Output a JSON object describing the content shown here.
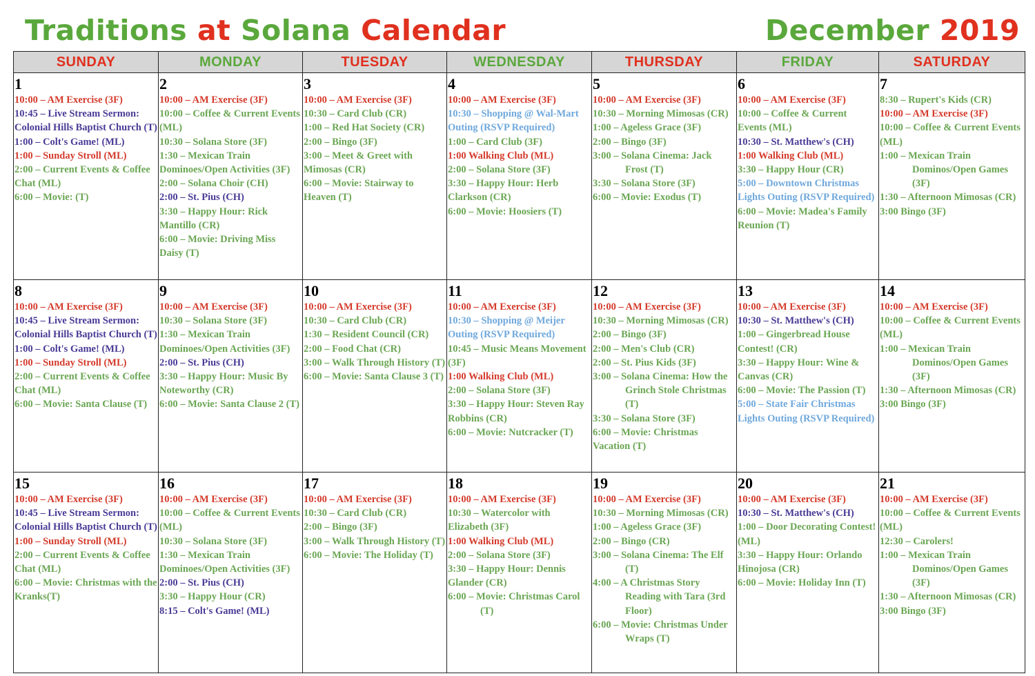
{
  "title": {
    "part1": "Traditions",
    "part2": "at",
    "part3": "Solana",
    "part4": "Calendar",
    "month": "December",
    "year": "2019"
  },
  "colors": {
    "title_green": "#5aa83c",
    "title_red": "#e0301e",
    "r": "#d43a2b",
    "g": "#6aa653",
    "p": "#4a3a96",
    "b": "#6fa8dc",
    "header_bg": "#d6d6d6"
  },
  "weekdays": [
    {
      "label": "SUNDAY",
      "color": "red"
    },
    {
      "label": "MONDAY",
      "color": "green"
    },
    {
      "label": "TUESDAY",
      "color": "red"
    },
    {
      "label": "WEDNESDAY",
      "color": "green"
    },
    {
      "label": "THURSDAY",
      "color": "red"
    },
    {
      "label": "FRIDAY",
      "color": "green"
    },
    {
      "label": "SATURDAY",
      "color": "red"
    }
  ],
  "weeks": [
    {
      "days": [
        {
          "num": "1",
          "events": [
            {
              "c": "r",
              "text": "10:00 – AM Exercise (3F)"
            },
            {
              "c": "p",
              "text": "10:45 – Live Stream Sermon: Colonial Hills Baptist Church (T)"
            },
            {
              "c": "p",
              "text": "1:00 – Colt's Game! (ML)"
            },
            {
              "c": "r",
              "text": "1:00 – Sunday Stroll (ML)"
            },
            {
              "c": "g",
              "text": "2:00 – Current Events & Coffee Chat (ML)"
            },
            {
              "c": "g",
              "text": "6:00 – Movie: (T)"
            }
          ]
        },
        {
          "num": "2",
          "events": [
            {
              "c": "r",
              "text": "10:00 – AM Exercise (3F)"
            },
            {
              "c": "g",
              "text": "10:00 – Coffee & Current Events (ML)"
            },
            {
              "c": "g",
              "text": "10:30 – Solana Store (3F)"
            },
            {
              "c": "g",
              "text": "1:30 – Mexican Train Dominoes/Open Activities (3F)"
            },
            {
              "c": "g",
              "text": "2:00 – Solana Choir (CH)"
            },
            {
              "c": "p",
              "text": "2:00 – St. Pius (CH)"
            },
            {
              "c": "g",
              "text": "3:30 – Happy Hour: Rick Mantillo (CR)"
            },
            {
              "c": "g",
              "text": "6:00 – Movie: Driving Miss Daisy (T)"
            }
          ]
        },
        {
          "num": "3",
          "events": [
            {
              "c": "r",
              "text": "10:00 – AM Exercise (3F)"
            },
            {
              "c": "g",
              "text": "10:30 – Card Club (CR)"
            },
            {
              "c": "g",
              "text": "1:00 – Red Hat Society (CR)"
            },
            {
              "c": "g",
              "text": "2:00 – Bingo (3F)"
            },
            {
              "c": "g",
              "text": "3:00 – Meet & Greet with Mimosas (CR)"
            },
            {
              "c": "g",
              "text": "6:00 – Movie: Stairway to Heaven (T)"
            }
          ]
        },
        {
          "num": "4",
          "events": [
            {
              "c": "r",
              "text": "10:00 – AM Exercise (3F)"
            },
            {
              "c": "b",
              "text": "10:30 – Shopping @ Wal-Mart Outing (RSVP Required)"
            },
            {
              "c": "g",
              "text": "1:00 – Card Club (3F)"
            },
            {
              "c": "r",
              "text": "1:00 Walking Club (ML)"
            },
            {
              "c": "g",
              "text": "2:00 – Solana Store (3F)"
            },
            {
              "c": "g",
              "text": "3:30 – Happy Hour: Herb Clarkson (CR)"
            },
            {
              "c": "g",
              "text": "6:00 – Movie: Hoosiers (T)"
            }
          ]
        },
        {
          "num": "5",
          "events": [
            {
              "c": "r",
              "text": "10:00 – AM Exercise (3F)"
            },
            {
              "c": "g",
              "text": "10:30 – Morning Mimosas (CR)"
            },
            {
              "c": "g",
              "text": "1:00 – Ageless Grace (3F)"
            },
            {
              "c": "g",
              "text": "2:00 – Bingo (3F)"
            },
            {
              "c": "g",
              "text": "3:00 – Solana Cinema: Jack Frost (T)",
              "hang": true
            },
            {
              "c": "g",
              "text": "3:30 – Solana Store (3F)"
            },
            {
              "c": "g",
              "text": "6:00 – Movie: Exodus (T)"
            }
          ]
        },
        {
          "num": "6",
          "events": [
            {
              "c": "r",
              "text": "10:00 – AM Exercise (3F)"
            },
            {
              "c": "g",
              "text": "10:00 – Coffee & Current Events (ML)"
            },
            {
              "c": "p",
              "text": "10:30 – St. Matthew's (CH)"
            },
            {
              "c": "r",
              "text": "1:00 Walking Club (ML)"
            },
            {
              "c": "g",
              "text": "3:30 – Happy Hour (CR)"
            },
            {
              "c": "b",
              "text": "5:00 – Downtown Christmas Lights Outing (RSVP Required)"
            },
            {
              "c": "g",
              "text": "6:00 – Movie: Madea's Family Reunion (T)"
            }
          ]
        },
        {
          "num": "7",
          "events": [
            {
              "c": "g",
              "text": "8:30 – Rupert's Kids (CR)"
            },
            {
              "c": "r",
              "text": "10:00 – AM Exercise (3F)"
            },
            {
              "c": "g",
              "text": "10:00 – Coffee & Current Events (ML)"
            },
            {
              "c": "g",
              "text": "1:00 – Mexican Train Dominos/Open Games (3F)",
              "hang": true
            },
            {
              "c": "g",
              "text": "1:30 – Afternoon Mimosas (CR)",
              "hang": true
            },
            {
              "c": "g",
              "text": "3:00 Bingo (3F)"
            }
          ]
        }
      ]
    },
    {
      "days": [
        {
          "num": "8",
          "events": [
            {
              "c": "r",
              "text": "10:00 – AM Exercise (3F)"
            },
            {
              "c": "p",
              "text": "10:45 – Live Stream Sermon: Colonial Hills Baptist Church (T)"
            },
            {
              "c": "p",
              "text": "1:00 – Colt's Game! (ML)"
            },
            {
              "c": "r",
              "text": "1:00 – Sunday Stroll (ML)"
            },
            {
              "c": "g",
              "text": "2:00 – Current Events & Coffee Chat (ML)"
            },
            {
              "c": "g",
              "text": "6:00 – Movie: Santa Clause (T)"
            }
          ]
        },
        {
          "num": "9",
          "events": [
            {
              "c": "r",
              "text": "10:00 – AM Exercise (3F)"
            },
            {
              "c": "g",
              "text": "10:30 – Solana Store (3F)"
            },
            {
              "c": "g",
              "text": "1:30 – Mexican Train Dominoes/Open Activities (3F)"
            },
            {
              "c": "p",
              "text": "2:00 – St. Pius (CH)"
            },
            {
              "c": "g",
              "text": "3:30 – Happy Hour: Music By Noteworthy (CR)"
            },
            {
              "c": "g",
              "text": "6:00 – Movie: Santa Clause 2 (T)"
            }
          ]
        },
        {
          "num": "10",
          "events": [
            {
              "c": "r",
              "text": "10:00 – AM Exercise (3F)"
            },
            {
              "c": "g",
              "text": "10:30 – Card Club (CR)"
            },
            {
              "c": "g",
              "text": "1:30 – Resident Council (CR)"
            },
            {
              "c": "g",
              "text": "2:00 – Food Chat (CR)"
            },
            {
              "c": "g",
              "text": "3:00 – Walk Through History (T)"
            },
            {
              "c": "g",
              "text": "6:00 – Movie: Santa Clause 3 (T)"
            }
          ]
        },
        {
          "num": "11",
          "events": [
            {
              "c": "r",
              "text": "10:00 – AM Exercise (3F)"
            },
            {
              "c": "b",
              "text": "10:30 – Shopping @ Meijer Outing (RSVP Required)"
            },
            {
              "c": "g",
              "text": "10:45 – Music Means Movement (3F)"
            },
            {
              "c": "r",
              "text": "1:00 Walking Club (ML)"
            },
            {
              "c": "g",
              "text": "2:00 – Solana Store (3F)"
            },
            {
              "c": "g",
              "text": "3:30 – Happy Hour: Steven Ray Robbins (CR)"
            },
            {
              "c": "g",
              "text": "6:00 – Movie: Nutcracker (T)"
            }
          ]
        },
        {
          "num": "12",
          "events": [
            {
              "c": "r",
              "text": "10:00 – AM Exercise (3F)"
            },
            {
              "c": "g",
              "text": "10:30 – Morning Mimosas (CR)",
              "hang": true
            },
            {
              "c": "g",
              "text": "2:00 – Bingo (3F)"
            },
            {
              "c": "g",
              "text": "2:00 – Men's Club (CR)"
            },
            {
              "c": "g",
              "text": "2:00 – St. Pius Kids (3F)"
            },
            {
              "c": "g",
              "text": "3:00 – Solana Cinema: How the Grinch Stole Christmas (T)",
              "hang": true
            },
            {
              "c": "g",
              "text": "3:30 – Solana Store (3F)"
            },
            {
              "c": "g",
              "text": "6:00 – Movie: Christmas Vacation (T)"
            }
          ]
        },
        {
          "num": "13",
          "events": [
            {
              "c": "r",
              "text": "10:00 – AM Exercise (3F)"
            },
            {
              "c": "p",
              "text": "10:30 – St. Matthew's (CH)"
            },
            {
              "c": "g",
              "text": "1:00 – Gingerbread House Contest! (CR)"
            },
            {
              "c": "g",
              "text": "3:30 – Happy Hour: Wine & Canvas (CR)"
            },
            {
              "c": "g",
              "text": "6:00 – Movie: The Passion (T)"
            },
            {
              "c": "b",
              "text": "5:00 – State Fair Christmas Lights Outing (RSVP Required)"
            }
          ]
        },
        {
          "num": "14",
          "events": [
            {
              "c": "r",
              "text": "10:00 – AM Exercise (3F)"
            },
            {
              "c": "g",
              "text": "10:00 – Coffee & Current Events (ML)"
            },
            {
              "c": "g",
              "text": "1:00 – Mexican Train Dominos/Open Games (3F)",
              "hang": true
            },
            {
              "c": "g",
              "text": "1:30 – Afternoon Mimosas (CR)",
              "hang": true
            },
            {
              "c": "g",
              "text": "3:00 Bingo (3F)"
            }
          ]
        }
      ]
    },
    {
      "days": [
        {
          "num": "15",
          "events": [
            {
              "c": "r",
              "text": "10:00 – AM Exercise (3F)"
            },
            {
              "c": "p",
              "text": "10:45 – Live Stream Sermon: Colonial Hills Baptist Church (T)"
            },
            {
              "c": "r",
              "text": "1:00 – Sunday Stroll (ML)"
            },
            {
              "c": "g",
              "text": "2:00 – Current Events & Coffee Chat (ML)"
            },
            {
              "c": "g",
              "text": "6:00 – Movie: Christmas with the Kranks(T)"
            }
          ]
        },
        {
          "num": "16",
          "events": [
            {
              "c": "r",
              "text": "10:00 – AM Exercise (3F)"
            },
            {
              "c": "g",
              "text": "10:00 – Coffee & Current Events (ML)"
            },
            {
              "c": "g",
              "text": "10:30 – Solana Store (3F)"
            },
            {
              "c": "g",
              "text": "1:30 – Mexican Train Dominoes/Open Activities (3F)"
            },
            {
              "c": "p",
              "text": "2:00 – St. Pius (CH)"
            },
            {
              "c": "g",
              "text": "3:30 – Happy Hour (CR)"
            },
            {
              "c": "p",
              "text": "8:15 – Colt's Game! (ML)"
            }
          ]
        },
        {
          "num": "17",
          "events": [
            {
              "c": "r",
              "text": "10:00 – AM Exercise (3F)"
            },
            {
              "c": "g",
              "text": "10:30 – Card Club (CR)"
            },
            {
              "c": "g",
              "text": "2:00 – Bingo (3F)"
            },
            {
              "c": "g",
              "text": "3:00 – Walk Through History (T)"
            },
            {
              "c": "g",
              "text": "6:00 – Movie: The Holiday (T)"
            }
          ]
        },
        {
          "num": "18",
          "events": [
            {
              "c": "r",
              "text": "10:00 – AM Exercise (3F)"
            },
            {
              "c": "g",
              "text": "10:30 – Watercolor with Elizabeth (3F)"
            },
            {
              "c": "r",
              "text": "1:00 Walking Club (ML)"
            },
            {
              "c": "g",
              "text": "2:00 – Solana Store (3F)"
            },
            {
              "c": "g",
              "text": "3:30 – Happy Hour: Dennis Glander (CR)"
            },
            {
              "c": "g",
              "text": "6:00 – Movie: Christmas Carol (T)",
              "hang": true
            }
          ]
        },
        {
          "num": "19",
          "events": [
            {
              "c": "r",
              "text": "10:00 – AM Exercise (3F)"
            },
            {
              "c": "g",
              "text": "10:30 – Morning Mimosas (CR)",
              "hang": true
            },
            {
              "c": "g",
              "text": "1:00 – Ageless Grace (3F)"
            },
            {
              "c": "g",
              "text": "2:00 – Bingo (CR)"
            },
            {
              "c": "g",
              "text": "3:00 – Solana Cinema: The Elf (T)",
              "hang": true
            },
            {
              "c": "g",
              "text": "4:00 – A Christmas Story Reading with Tara (3rd Floor)",
              "hang": true
            },
            {
              "c": "g",
              "text": "6:00 – Movie: Christmas Under Wraps (T)",
              "hang": true
            }
          ]
        },
        {
          "num": "20",
          "events": [
            {
              "c": "r",
              "text": "10:00 – AM Exercise (3F)"
            },
            {
              "c": "p",
              "text": "10:30 – St. Matthew's (CH)"
            },
            {
              "c": "g",
              "text": "1:00 – Door Decorating Contest! (ML)"
            },
            {
              "c": "g",
              "text": "3:30 – Happy Hour: Orlando Hinojosa (CR)"
            },
            {
              "c": "g",
              "text": "6:00 – Movie: Holiday Inn (T)"
            }
          ]
        },
        {
          "num": "21",
          "events": [
            {
              "c": "r",
              "text": "10:00 – AM Exercise (3F)"
            },
            {
              "c": "g",
              "text": "10:00 – Coffee & Current Events (ML)"
            },
            {
              "c": "g",
              "text": "12:30 – Carolers!"
            },
            {
              "c": "g",
              "text": "1:00 – Mexican Train Dominos/Open Games (3F)",
              "hang": true
            },
            {
              "c": "g",
              "text": "1:30 – Afternoon Mimosas (CR)",
              "hang": true
            },
            {
              "c": "g",
              "text": "3:00 Bingo (3F)"
            }
          ]
        }
      ]
    }
  ]
}
